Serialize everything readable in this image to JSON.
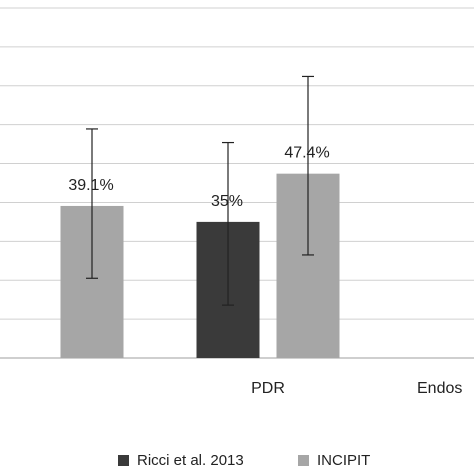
{
  "chart_data": {
    "type": "bar",
    "categories": [
      "",
      "PDR",
      "Endos"
    ],
    "series": [
      {
        "name": "Ricci et al. 2013",
        "color": "#3a3a3a",
        "values": [
          null,
          35,
          null
        ],
        "error_low": [
          null,
          13.6,
          null
        ],
        "error_high": [
          null,
          55.4,
          null
        ],
        "data_labels": [
          "",
          "35%",
          ""
        ]
      },
      {
        "name": "INCIPIT",
        "color": "#a6a6a6",
        "values": [
          39.1,
          47.4,
          null
        ],
        "error_low": [
          20.5,
          26.5,
          null
        ],
        "error_high": [
          58.9,
          72.4,
          null
        ],
        "data_labels": [
          "39.1%",
          "47.4%",
          ""
        ]
      }
    ],
    "ylim": [
      0,
      90
    ],
    "grid": true,
    "legend": "bottom",
    "gridline_color": "#d0d0d0",
    "axis_color": "#bfbfbf"
  }
}
